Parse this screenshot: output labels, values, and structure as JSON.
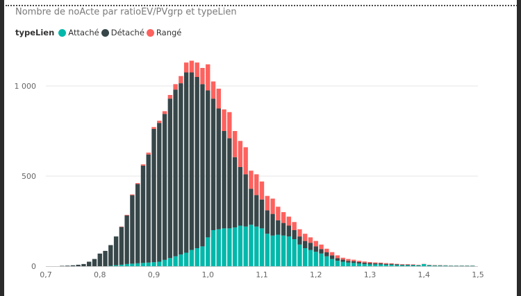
{
  "title": "Nombre de noActe par ratioEV/PVgrp et typeLien",
  "legend": {
    "title": "typeLien",
    "items": [
      {
        "label": "Attaché",
        "color": "#01b8aa"
      },
      {
        "label": "Détaché",
        "color": "#374649"
      },
      {
        "label": "Rangé",
        "color": "#fd625e"
      }
    ]
  },
  "chart_data": {
    "type": "bar",
    "stacked": true,
    "title": "Nombre de noActe par ratioEV/PVgrp et typeLien",
    "xlabel": "",
    "ylabel": "",
    "xlim": [
      0.7,
      1.5
    ],
    "ylim": [
      0,
      1150
    ],
    "x_ticks": [
      "0,7",
      "0,8",
      "0,9",
      "1,0",
      "1,1",
      "1,2",
      "1,3",
      "1,4",
      "1,5"
    ],
    "y_ticks": [
      {
        "value": 0,
        "label": "0"
      },
      {
        "value": 500,
        "label": "500"
      },
      {
        "value": 1000,
        "label": "1 000"
      }
    ],
    "grid": true,
    "legend_position": "top-left",
    "x": [
      0.73,
      0.74,
      0.75,
      0.76,
      0.77,
      0.78,
      0.79,
      0.8,
      0.81,
      0.82,
      0.83,
      0.84,
      0.85,
      0.86,
      0.87,
      0.88,
      0.89,
      0.9,
      0.91,
      0.92,
      0.93,
      0.94,
      0.95,
      0.96,
      0.97,
      0.98,
      0.99,
      1.0,
      1.01,
      1.02,
      1.03,
      1.04,
      1.05,
      1.06,
      1.07,
      1.08,
      1.09,
      1.1,
      1.11,
      1.12,
      1.13,
      1.14,
      1.15,
      1.16,
      1.17,
      1.18,
      1.19,
      1.2,
      1.21,
      1.22,
      1.23,
      1.24,
      1.25,
      1.26,
      1.27,
      1.28,
      1.29,
      1.3,
      1.31,
      1.32,
      1.33,
      1.34,
      1.35,
      1.36,
      1.37,
      1.38,
      1.39,
      1.4,
      1.41,
      1.42,
      1.43,
      1.44,
      1.45,
      1.46,
      1.47,
      1.48,
      1.49
    ],
    "series": [
      {
        "name": "Attaché",
        "color": "#01b8aa",
        "values": [
          0,
          0,
          0,
          0,
          0,
          0,
          0,
          0,
          0,
          2,
          5,
          8,
          12,
          14,
          16,
          18,
          20,
          22,
          25,
          35,
          45,
          55,
          65,
          75,
          90,
          100,
          110,
          160,
          200,
          205,
          210,
          210,
          215,
          225,
          220,
          230,
          220,
          210,
          180,
          170,
          175,
          170,
          165,
          150,
          120,
          100,
          90,
          80,
          70,
          55,
          40,
          30,
          25,
          20,
          18,
          15,
          12,
          10,
          10,
          10,
          8,
          8,
          6,
          5,
          5,
          5,
          4,
          12,
          4,
          3,
          3,
          3,
          2,
          2,
          2,
          2,
          2
        ]
      },
      {
        "name": "Détaché",
        "color": "#374649",
        "values": [
          2,
          3,
          5,
          8,
          12,
          25,
          40,
          70,
          85,
          115,
          160,
          210,
          270,
          380,
          440,
          540,
          600,
          740,
          770,
          810,
          885,
          925,
          950,
          1000,
          985,
          950,
          900,
          815,
          730,
          670,
          540,
          500,
          390,
          325,
          290,
          200,
          175,
          160,
          130,
          120,
          80,
          70,
          60,
          50,
          45,
          40,
          40,
          30,
          25,
          22,
          20,
          15,
          12,
          10,
          10,
          8,
          8,
          8,
          6,
          6,
          5,
          5,
          5,
          4,
          4,
          3,
          2,
          0,
          2,
          2,
          2,
          1,
          1,
          1,
          1,
          1,
          1
        ]
      },
      {
        "name": "Rangé",
        "color": "#fd625e",
        "values": [
          0,
          0,
          0,
          0,
          0,
          0,
          0,
          0,
          0,
          0,
          0,
          2,
          3,
          4,
          5,
          7,
          10,
          10,
          12,
          15,
          20,
          30,
          40,
          55,
          65,
          80,
          90,
          145,
          95,
          110,
          120,
          145,
          145,
          145,
          150,
          100,
          115,
          100,
          80,
          85,
          75,
          60,
          50,
          45,
          40,
          40,
          30,
          30,
          25,
          20,
          18,
          15,
          10,
          10,
          8,
          7,
          6,
          5,
          5,
          4,
          4,
          3,
          2,
          2,
          2,
          2,
          1,
          1,
          1,
          1,
          1,
          1,
          1,
          1,
          1,
          1,
          1
        ]
      }
    ]
  }
}
